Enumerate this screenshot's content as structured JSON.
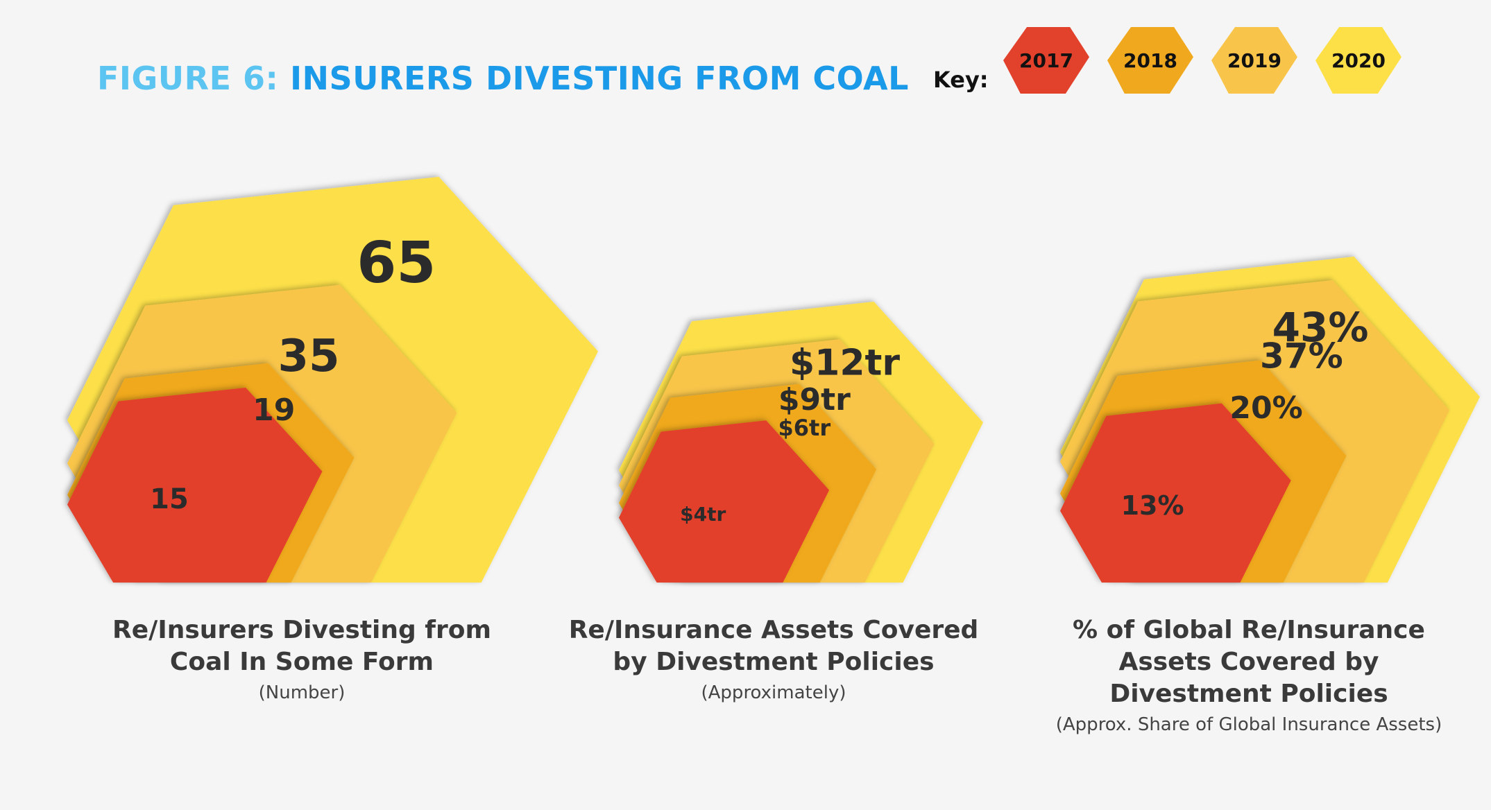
{
  "title": {
    "prefix": "FIGURE 6:",
    "main": "INSURERS DIVESTING FROM COAL"
  },
  "key": {
    "label": "Key:",
    "items": [
      {
        "year": "2017",
        "color": "#e2412b"
      },
      {
        "year": "2018",
        "color": "#f0a91e"
      },
      {
        "year": "2019",
        "color": "#f8c54a"
      },
      {
        "year": "2020",
        "color": "#fde048"
      }
    ]
  },
  "chart_data": [
    {
      "type": "area",
      "categories": [
        "2017",
        "2018",
        "2019",
        "2020"
      ],
      "values": [
        15,
        19,
        35,
        65
      ],
      "labels": [
        "15",
        "19",
        "35",
        "65"
      ],
      "title": "Re/Insurers Divesting from Coal In Some Form",
      "subtitle": "(Number)"
    },
    {
      "type": "area",
      "categories": [
        "2017",
        "2018",
        "2019",
        "2020"
      ],
      "values": [
        4,
        6,
        9,
        12
      ],
      "labels": [
        "$4tr",
        "$6tr",
        "$9tr",
        "$12tr"
      ],
      "title": "Re/Insurance Assets Covered by Divestment Policies",
      "subtitle": "(Approximately)"
    },
    {
      "type": "area",
      "categories": [
        "2017",
        "2018",
        "2019",
        "2020"
      ],
      "values": [
        13,
        20,
        37,
        43
      ],
      "labels": [
        "13%",
        "20%",
        "37%",
        "43%"
      ],
      "title": "% of Global Re/Insurance Assets Covered by Divestment Policies",
      "subtitle": "(Approx. Share of Global Insurance Assets)"
    }
  ]
}
